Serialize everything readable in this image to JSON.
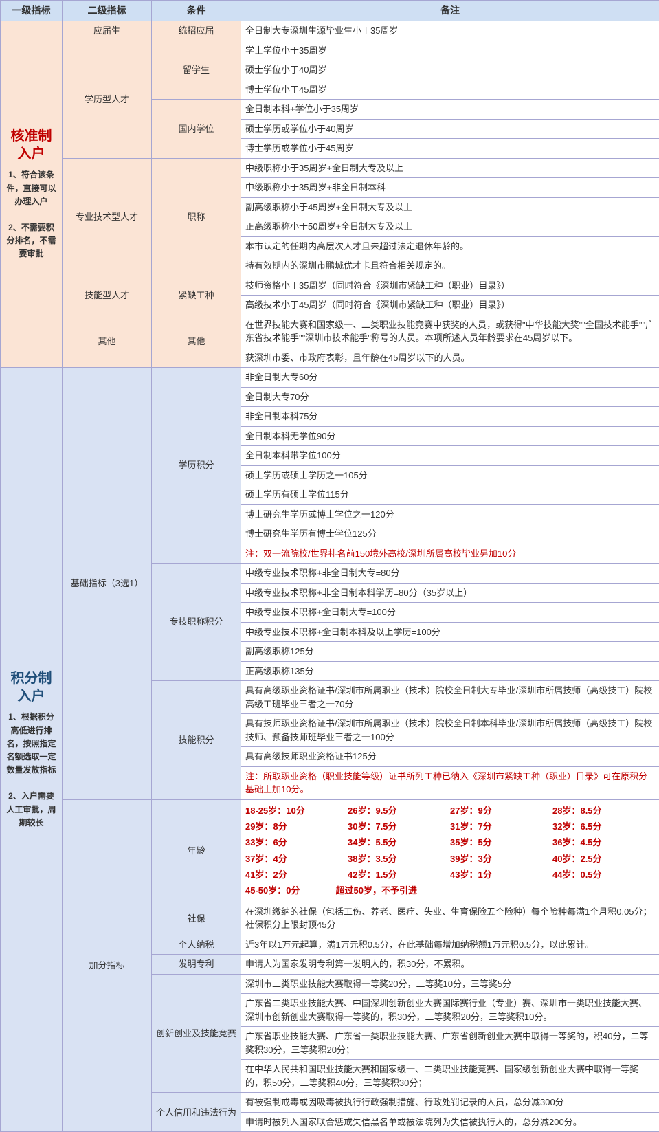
{
  "headers": {
    "c1": "一级指标",
    "c2": "二级指标",
    "c3": "条件",
    "c4": "备注"
  },
  "section1": {
    "title": "核准制入户",
    "desc": "1、符合该条件，直接可以办理入户\n\n2、不需要积分排名，不需要审批",
    "rows": [
      {
        "l2": "应届生",
        "l2span": 1,
        "l3": "统招应届",
        "l3span": 1,
        "note": "全日制大专深圳生源毕业生小于35周岁"
      },
      {
        "l2": "学历型人才",
        "l2span": 6,
        "l3": "留学生",
        "l3span": 3,
        "note": "学士学位小于35周岁"
      },
      {
        "note": "硕士学位小于40周岁"
      },
      {
        "note": "博士学位小于45周岁"
      },
      {
        "l3": "国内学位",
        "l3span": 3,
        "note": "全日制本科+学位小于35周岁"
      },
      {
        "note": "硕士学历或学位小于40周岁"
      },
      {
        "note": "博士学历或学位小于45周岁"
      },
      {
        "l2": "专业技术型人才",
        "l2span": 6,
        "l3": "职称",
        "l3span": 6,
        "note": "中级职称小于35周岁+全日制大专及以上"
      },
      {
        "note": "中级职称小于35周岁+非全日制本科"
      },
      {
        "note": "副高级职称小于45周岁+全日制大专及以上"
      },
      {
        "note": "正高级职称小于50周岁+全日制大专及以上"
      },
      {
        "note": "本市认定的任期内高层次人才且未超过法定退休年龄的。"
      },
      {
        "note": "持有效期内的深圳市鹏城优才卡且符合相关规定的。"
      },
      {
        "l2": "技能型人才",
        "l2span": 2,
        "l3": "紧缺工种",
        "l3span": 2,
        "note": "技师资格小于35周岁（同时符合《深圳市紧缺工种（职业）目录》）"
      },
      {
        "note": "高级技术小于45周岁（同时符合《深圳市紧缺工种（职业）目录》）"
      },
      {
        "l2": "其他",
        "l2span": 2,
        "l3": "其他",
        "l3span": 2,
        "note": "在世界技能大赛和国家级一、二类职业技能竞赛中获奖的人员，或获得\"中华技能大奖\"\"全国技术能手\"\"广东省技术能手\"\"深圳市技术能手\"称号的人员。本项所述人员年龄要求在45周岁以下。"
      },
      {
        "note": "获深圳市委、市政府表彰，且年龄在45周岁以下的人员。"
      }
    ]
  },
  "section2": {
    "title": "积分制入户",
    "desc": "1、根据积分高低进行排名，按照指定名额选取一定数量发放指标\n\n2、入户需要人工审批，周期较长",
    "basic_label": "基础指标（3选1）",
    "edu_label": "学历积分",
    "edu": [
      "非全日制大专60分",
      "全日制大专70分",
      "非全日制本科75分",
      "全日制本科无学位90分",
      "全日制本科带学位100分",
      "硕士学历或硕士学历之一105分",
      "硕士学历有硕士学位115分",
      "博士研究生学历或博士学位之一120分",
      "博士研究生学历有博士学位125分"
    ],
    "edu_note": "注：双一流院校/世界排名前150境外高校/深圳所属高校毕业另加10分",
    "pro_label": "专技职称积分",
    "pro": [
      "中级专业技术职称+非全日制大专=80分",
      "中级专业技术职称+非全日制本科学历=80分（35岁以上）",
      "中级专业技术职称+全日制大专=100分",
      "中级专业技术职称+全日制本科及以上学历=100分",
      "副高级职称125分",
      "正高级职称135分"
    ],
    "skill_label": "技能积分",
    "skill": [
      "具有高级职业资格证书/深圳市所属职业（技术）院校全日制大专毕业/深圳市所属技师（高级技工）院校高级工班毕业三者之一70分",
      "具有技师职业资格证书/深圳市所属职业（技术）院校全日制本科毕业/深圳市所属技师（高级技工）院校技师、预备技师班毕业三者之一100分",
      "具有高级技师职业资格证书125分"
    ],
    "skill_note": "注：所取职业资格（职业技能等级）证书所列工种已纳入《深圳市紧缺工种（职业）目录》可在原积分基础上加10分。",
    "bonus_label": "加分指标",
    "age_label": "年龄",
    "age_data": [
      [
        "18-25岁：10分",
        "26岁：9.5分",
        "27岁：9分",
        "28岁：8.5分"
      ],
      [
        "29岁：8分",
        "30岁：7.5分",
        "31岁：7分",
        "32岁：6.5分"
      ],
      [
        "33岁：6分",
        "34岁：5.5分",
        "35岁：5分",
        "36岁：4.5分"
      ],
      [
        "37岁：4分",
        "38岁：3.5分",
        "39岁：3分",
        "40岁：2.5分"
      ],
      [
        "41岁：2分",
        "42岁：1.5分",
        "43岁：1分",
        "44岁：0.5分"
      ]
    ],
    "age_last": "45-50岁：0分　　　　超过50岁，不予引进",
    "social_label": "社保",
    "social": "在深圳缴纳的社保（包括工伤、养老、医疗、失业、生育保险五个险种）每个险种每满1个月积0.05分；社保积分上限封顶45分",
    "tax_label": "个人纳税",
    "tax": "近3年以1万元起算，满1万元积0.5分，在此基础每增加纳税额1万元积0.5分，以此累计。",
    "patent_label": "发明专利",
    "patent": "申请人为国家发明专利第一发明人的，积30分，不累积。",
    "innov_label": "创新创业及技能竞赛",
    "innov": [
      "深圳市二类职业技能大赛取得一等奖20分，二等奖10分，三等奖5分",
      "广东省二类职业技能大赛、中国深圳创新创业大赛国际赛行业（专业）赛、深圳市一类职业技能大赛、深圳市创新创业大赛取得一等奖的，积30分，二等奖积20分，三等奖积10分。",
      "广东省职业技能大赛、广东省一类职业技能大赛、广东省创新创业大赛中取得一等奖的，积40分，二等奖积30分，三等奖积20分；",
      "在中华人民共和国职业技能大赛和国家级一、二类职业技能竞赛、国家级创新创业大赛中取得一等奖的，积50分，二等奖积40分，三等奖积30分；"
    ],
    "credit_label": "个人信用和违法行为",
    "credit": [
      "有被强制戒毒或因吸毒被执行行政强制措施、行政处罚记录的人员，总分减300分",
      "申请时被列入国家联合惩戒失信黑名单或被法院列为失信被执行人的，总分减200分。"
    ]
  }
}
